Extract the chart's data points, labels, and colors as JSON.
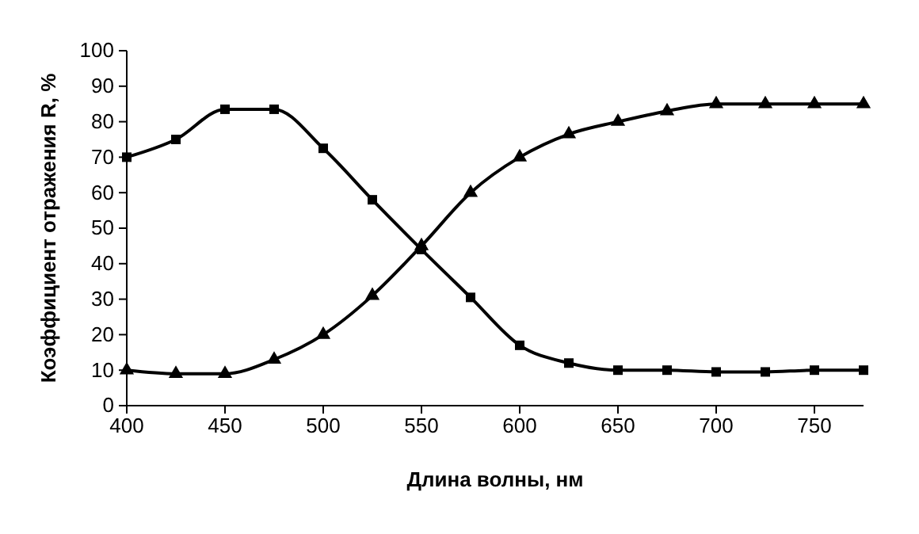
{
  "chart_data": {
    "type": "line",
    "xlabel": "Длина волны, нм",
    "ylabel": "Коэффициент отражения R, %",
    "x": [
      400,
      425,
      450,
      475,
      500,
      525,
      550,
      575,
      600,
      625,
      650,
      675,
      700,
      725,
      750,
      775
    ],
    "xlim": [
      400,
      775
    ],
    "xticks": [
      400,
      450,
      500,
      550,
      600,
      650,
      700,
      750
    ],
    "ylim": [
      0,
      100
    ],
    "yticks": [
      0,
      10,
      20,
      30,
      40,
      50,
      60,
      70,
      80,
      90,
      100
    ],
    "grid": false,
    "line_style": "solid",
    "series": [
      {
        "color": "#000000",
        "marker": "square",
        "values": [
          70,
          75,
          83.5,
          83.5,
          72.5,
          58,
          44,
          30.5,
          17,
          12,
          10,
          10,
          9.5,
          9.5,
          10,
          10
        ]
      },
      {
        "color": "#000000",
        "marker": "triangle",
        "values": [
          10,
          9,
          9,
          13,
          20,
          31,
          45,
          60,
          70,
          76.5,
          80,
          83,
          85,
          85,
          85,
          85
        ]
      }
    ]
  }
}
